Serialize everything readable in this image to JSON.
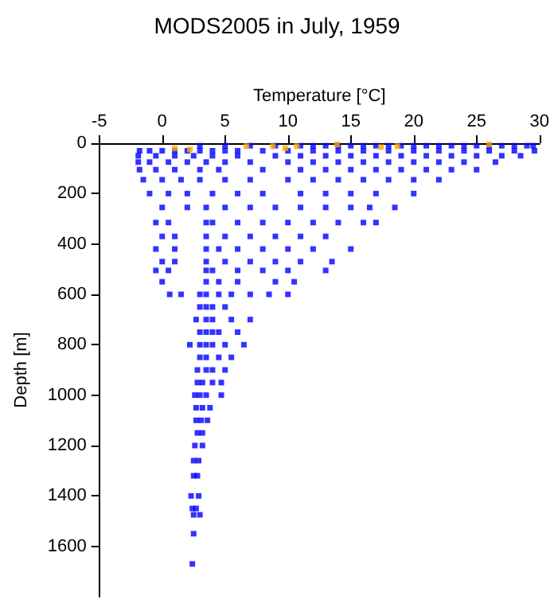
{
  "chart_data": {
    "type": "scatter",
    "title": "MODS2005 in July, 1959",
    "xlabel": "Temperature [°C]",
    "ylabel": "Depth [m]",
    "xlim": [
      -5,
      30
    ],
    "xticks": [
      -5,
      0,
      5,
      10,
      15,
      20,
      25,
      30
    ],
    "ylim": [
      1800,
      0
    ],
    "yticks": [
      0,
      200,
      400,
      600,
      800,
      1000,
      1200,
      1400,
      1600
    ],
    "grid": false,
    "marker": "square",
    "series": [
      {
        "color": "#0000ff",
        "x": [
          3,
          5,
          7,
          9,
          11,
          12,
          13,
          14,
          15,
          16,
          17,
          18,
          19,
          20,
          21,
          22,
          23,
          24,
          25,
          26,
          27,
          28,
          29,
          29.5,
          -1.8,
          -1,
          0,
          1,
          2,
          3,
          4,
          5,
          6,
          8,
          10,
          12,
          14,
          16,
          18,
          20,
          22,
          24,
          26,
          28,
          29.6,
          -1.9,
          -0.5,
          1,
          2.5,
          4,
          6,
          9,
          11,
          13,
          15,
          17,
          19,
          21,
          23,
          25,
          27,
          28.5,
          -1.9,
          -1,
          0.5,
          2,
          3.5,
          5,
          7,
          10,
          12,
          14,
          16,
          18,
          20,
          22,
          24,
          26.5,
          -1.8,
          -0.5,
          1,
          3,
          4.5,
          8,
          11,
          13,
          15,
          17,
          19,
          21,
          23,
          25,
          -1.5,
          0,
          1.5,
          3,
          5,
          7,
          10,
          12,
          14,
          16,
          18,
          20,
          22,
          -1,
          0.5,
          2,
          4,
          6,
          8,
          11,
          13,
          15,
          17,
          20,
          0,
          2,
          3.5,
          5,
          7,
          9,
          11,
          13,
          15,
          16.5,
          18.5,
          -0.5,
          0.5,
          3.5,
          4,
          6,
          8,
          10,
          12,
          14,
          16,
          17,
          0,
          1,
          3.5,
          5,
          7,
          9,
          11,
          13,
          -0.5,
          1,
          3.5,
          4.5,
          6,
          8,
          10,
          12,
          15,
          0,
          1,
          3.5,
          5,
          7,
          9,
          11,
          13.5,
          -0.5,
          0.5,
          3.5,
          4,
          6,
          8,
          10,
          13,
          0,
          3.5,
          4.5,
          6,
          9,
          10.5,
          0.6,
          1.5,
          3,
          3.5,
          4.5,
          5.5,
          7,
          8.5,
          10,
          3,
          3.5,
          4,
          5,
          2.7,
          3.5,
          4,
          5.5,
          7,
          3,
          3.5,
          4,
          4.5,
          6,
          2.2,
          3,
          3.5,
          4,
          5,
          6.5,
          3,
          3.5,
          4.5,
          5.5,
          2.8,
          3.5,
          4,
          5,
          2.8,
          3.2,
          4,
          4.7,
          2.6,
          3,
          3.5,
          4.7,
          2.7,
          3.2,
          3.8,
          2.7,
          3.1,
          3.6,
          2.8,
          3.2,
          2.6,
          3.2,
          2.5,
          2.9,
          2.5,
          2.8,
          2.3,
          2.9,
          2.4,
          2.7,
          2.5,
          3,
          2.5,
          2.4
        ],
        "values": [
          10,
          10,
          10,
          10,
          10,
          10,
          10,
          10,
          10,
          10,
          10,
          10,
          10,
          10,
          10,
          10,
          10,
          10,
          10,
          10,
          10,
          10,
          10,
          10,
          30,
          30,
          30,
          30,
          30,
          30,
          30,
          30,
          30,
          30,
          30,
          30,
          30,
          30,
          30,
          30,
          30,
          30,
          30,
          30,
          30,
          50,
          50,
          50,
          50,
          50,
          50,
          50,
          50,
          50,
          50,
          50,
          50,
          50,
          50,
          50,
          50,
          50,
          75,
          75,
          75,
          75,
          75,
          75,
          75,
          75,
          75,
          75,
          75,
          75,
          75,
          75,
          75,
          75,
          105,
          105,
          105,
          105,
          105,
          105,
          105,
          105,
          105,
          105,
          105,
          105,
          105,
          105,
          145,
          145,
          145,
          145,
          145,
          145,
          145,
          145,
          145,
          145,
          145,
          145,
          145,
          200,
          200,
          200,
          200,
          200,
          200,
          200,
          200,
          200,
          200,
          200,
          255,
          255,
          255,
          255,
          255,
          255,
          255,
          255,
          255,
          255,
          255,
          315,
          315,
          315,
          315,
          315,
          315,
          315,
          315,
          315,
          315,
          315,
          370,
          370,
          370,
          370,
          370,
          370,
          370,
          370,
          420,
          420,
          420,
          420,
          420,
          420,
          420,
          420,
          420,
          470,
          470,
          470,
          470,
          470,
          470,
          470,
          470,
          505,
          505,
          505,
          505,
          505,
          505,
          505,
          505,
          550,
          550,
          550,
          550,
          550,
          550,
          600,
          600,
          600,
          600,
          600,
          600,
          600,
          600,
          600,
          650,
          650,
          650,
          650,
          700,
          700,
          700,
          700,
          700,
          750,
          750,
          750,
          750,
          750,
          800,
          800,
          800,
          800,
          800,
          800,
          850,
          850,
          850,
          850,
          900,
          900,
          900,
          900,
          950,
          950,
          950,
          950,
          1000,
          1000,
          1000,
          1000,
          1050,
          1050,
          1050,
          1100,
          1100,
          1100,
          1150,
          1150,
          1200,
          1200,
          1260,
          1260,
          1320,
          1320,
          1400,
          1400,
          1450,
          1450,
          1475,
          1475,
          1550,
          1670
        ]
      },
      {
        "color": "#ffa500",
        "x": [
          1,
          2.2,
          6.7,
          8.8,
          9.8,
          10.7,
          13.9,
          17.4,
          18.7,
          26
        ],
        "values": [
          20,
          25,
          12,
          12,
          20,
          12,
          5,
          15,
          12,
          5
        ]
      }
    ]
  }
}
